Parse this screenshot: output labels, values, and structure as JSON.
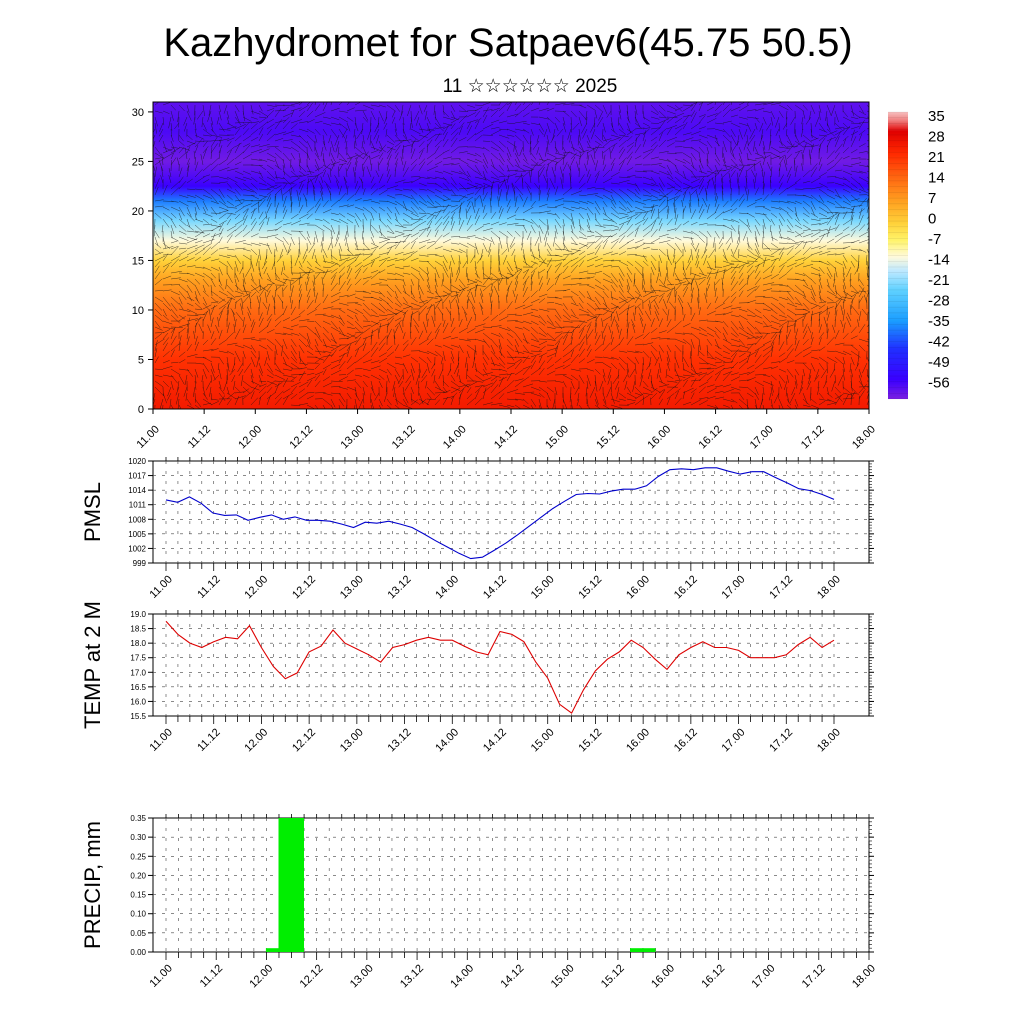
{
  "header": {
    "title": "Kazhydromet for Satpaev6(45.75 50.5)",
    "subtitle": "11 ☆☆☆☆☆☆ 2025"
  },
  "colors": {
    "pmsl_line": "#0000cc",
    "temp_line": "#dd0000",
    "precip_bar": "#00ee00",
    "grid": "#555555"
  },
  "chart_data": [
    {
      "id": "cross_section",
      "type": "heatmap",
      "title": "",
      "xlabel": "",
      "ylabel": "",
      "x_tick_labels": [
        "11.00",
        "11.12",
        "12.00",
        "12.12",
        "13.00",
        "13.12",
        "14.00",
        "14.12",
        "15.00",
        "15.12",
        "16.00",
        "16.12",
        "17.00",
        "17.12",
        "18.00"
      ],
      "y_ticks": [
        0,
        5,
        10,
        15,
        20,
        25,
        30
      ],
      "ylim": [
        0,
        31
      ],
      "colorbar": {
        "labels": [
          "35",
          "28",
          "21",
          "14",
          "7",
          "0",
          "-7",
          "-14",
          "-21",
          "-28",
          "-35",
          "-42",
          "-49",
          "-56"
        ],
        "range": [
          -63,
          40
        ]
      },
      "profile": {
        "levels": [
          0,
          5,
          10,
          13,
          15,
          17,
          19,
          21,
          22.5,
          25,
          28,
          31
        ],
        "values": [
          28,
          24,
          16,
          8,
          0,
          -12,
          -22,
          -38,
          -56,
          -62,
          -58,
          -60
        ]
      },
      "overlay": "wind vectors"
    },
    {
      "id": "pmsl",
      "type": "line",
      "ylabel": "PMSL",
      "ylim": [
        999,
        1020
      ],
      "y_ticks": [
        "1020",
        "1017",
        "1014",
        "1011",
        "1008",
        "1005",
        "1002",
        "999"
      ],
      "x_tick_labels": [
        "11.00",
        "11.12",
        "12.00",
        "12.12",
        "13.00",
        "13.12",
        "14.00",
        "14.12",
        "15.00",
        "15.12",
        "16.00",
        "16.12",
        "17.00",
        "17.12",
        "18.00"
      ],
      "series": [
        {
          "values": [
            1012.0,
            1011.5,
            1012.6,
            1011.3,
            1009.3,
            1008.8,
            1008.9,
            1007.8,
            1008.4,
            1008.9,
            1008.0,
            1008.5,
            1007.8,
            1007.8,
            1007.6,
            1007.0,
            1006.3,
            1007.4,
            1007.2,
            1007.6,
            1007.0,
            1006.3,
            1005.0,
            1003.6,
            1002.3,
            1001.0,
            999.9,
            1000.2,
            1001.6,
            1003.1,
            1004.8,
            1006.6,
            1008.4,
            1010.2,
            1011.7,
            1013.1,
            1013.3,
            1013.2,
            1013.8,
            1014.2,
            1014.2,
            1014.9,
            1016.8,
            1018.2,
            1018.4,
            1018.2,
            1018.6,
            1018.6,
            1017.9,
            1017.3,
            1017.8,
            1017.8,
            1016.6,
            1015.5,
            1014.3,
            1013.9,
            1013.1,
            1012.1
          ]
        }
      ]
    },
    {
      "id": "temp",
      "type": "line",
      "ylabel": "TEMP at 2 M",
      "ylim": [
        15.5,
        19.0
      ],
      "y_ticks": [
        "19.0",
        "18.5",
        "18.0",
        "17.5",
        "17.0",
        "16.5",
        "16.0",
        "15.5"
      ],
      "x_tick_labels": [
        "11.00",
        "11.12",
        "12.00",
        "12.12",
        "13.00",
        "13.12",
        "14.00",
        "14.12",
        "15.00",
        "15.12",
        "16.00",
        "16.12",
        "17.00",
        "17.12",
        "18.00"
      ],
      "series": [
        {
          "values": [
            18.75,
            18.3,
            18.0,
            17.85,
            18.05,
            18.2,
            18.15,
            18.6,
            17.85,
            17.2,
            16.78,
            16.98,
            17.7,
            17.9,
            18.45,
            18.0,
            17.8,
            17.6,
            17.35,
            17.85,
            17.95,
            18.1,
            18.2,
            18.1,
            18.1,
            17.9,
            17.7,
            17.6,
            18.4,
            18.3,
            18.05,
            17.35,
            16.8,
            15.9,
            15.6,
            16.4,
            17.05,
            17.45,
            17.7,
            18.1,
            17.85,
            17.45,
            17.1,
            17.6,
            17.85,
            18.05,
            17.85,
            17.85,
            17.75,
            17.5,
            17.5,
            17.5,
            17.6,
            17.95,
            18.2,
            17.85,
            18.1
          ]
        }
      ]
    },
    {
      "id": "precip",
      "type": "bar",
      "ylabel": "PRECIP, mm",
      "ylim": [
        0,
        0.35
      ],
      "y_ticks": [
        "0.35",
        "0.30",
        "0.25",
        "0.20",
        "0.15",
        "0.10",
        "0.05",
        "0.00"
      ],
      "x_tick_labels": [
        "11.00",
        "11.12",
        "12.00",
        "12.12",
        "13.00",
        "13.12",
        "14.00",
        "14.12",
        "15.00",
        "15.12",
        "16.00",
        "16.12",
        "17.00",
        "17.12",
        "18.00"
      ],
      "bars": [
        {
          "time": "12.00",
          "value": 0.01
        },
        {
          "time": "12.03",
          "value": 0.35
        },
        {
          "time": "12.06",
          "value": 0.35
        },
        {
          "time": "15.15",
          "value": 0.01
        },
        {
          "time": "15.18",
          "value": 0.01
        }
      ]
    }
  ]
}
